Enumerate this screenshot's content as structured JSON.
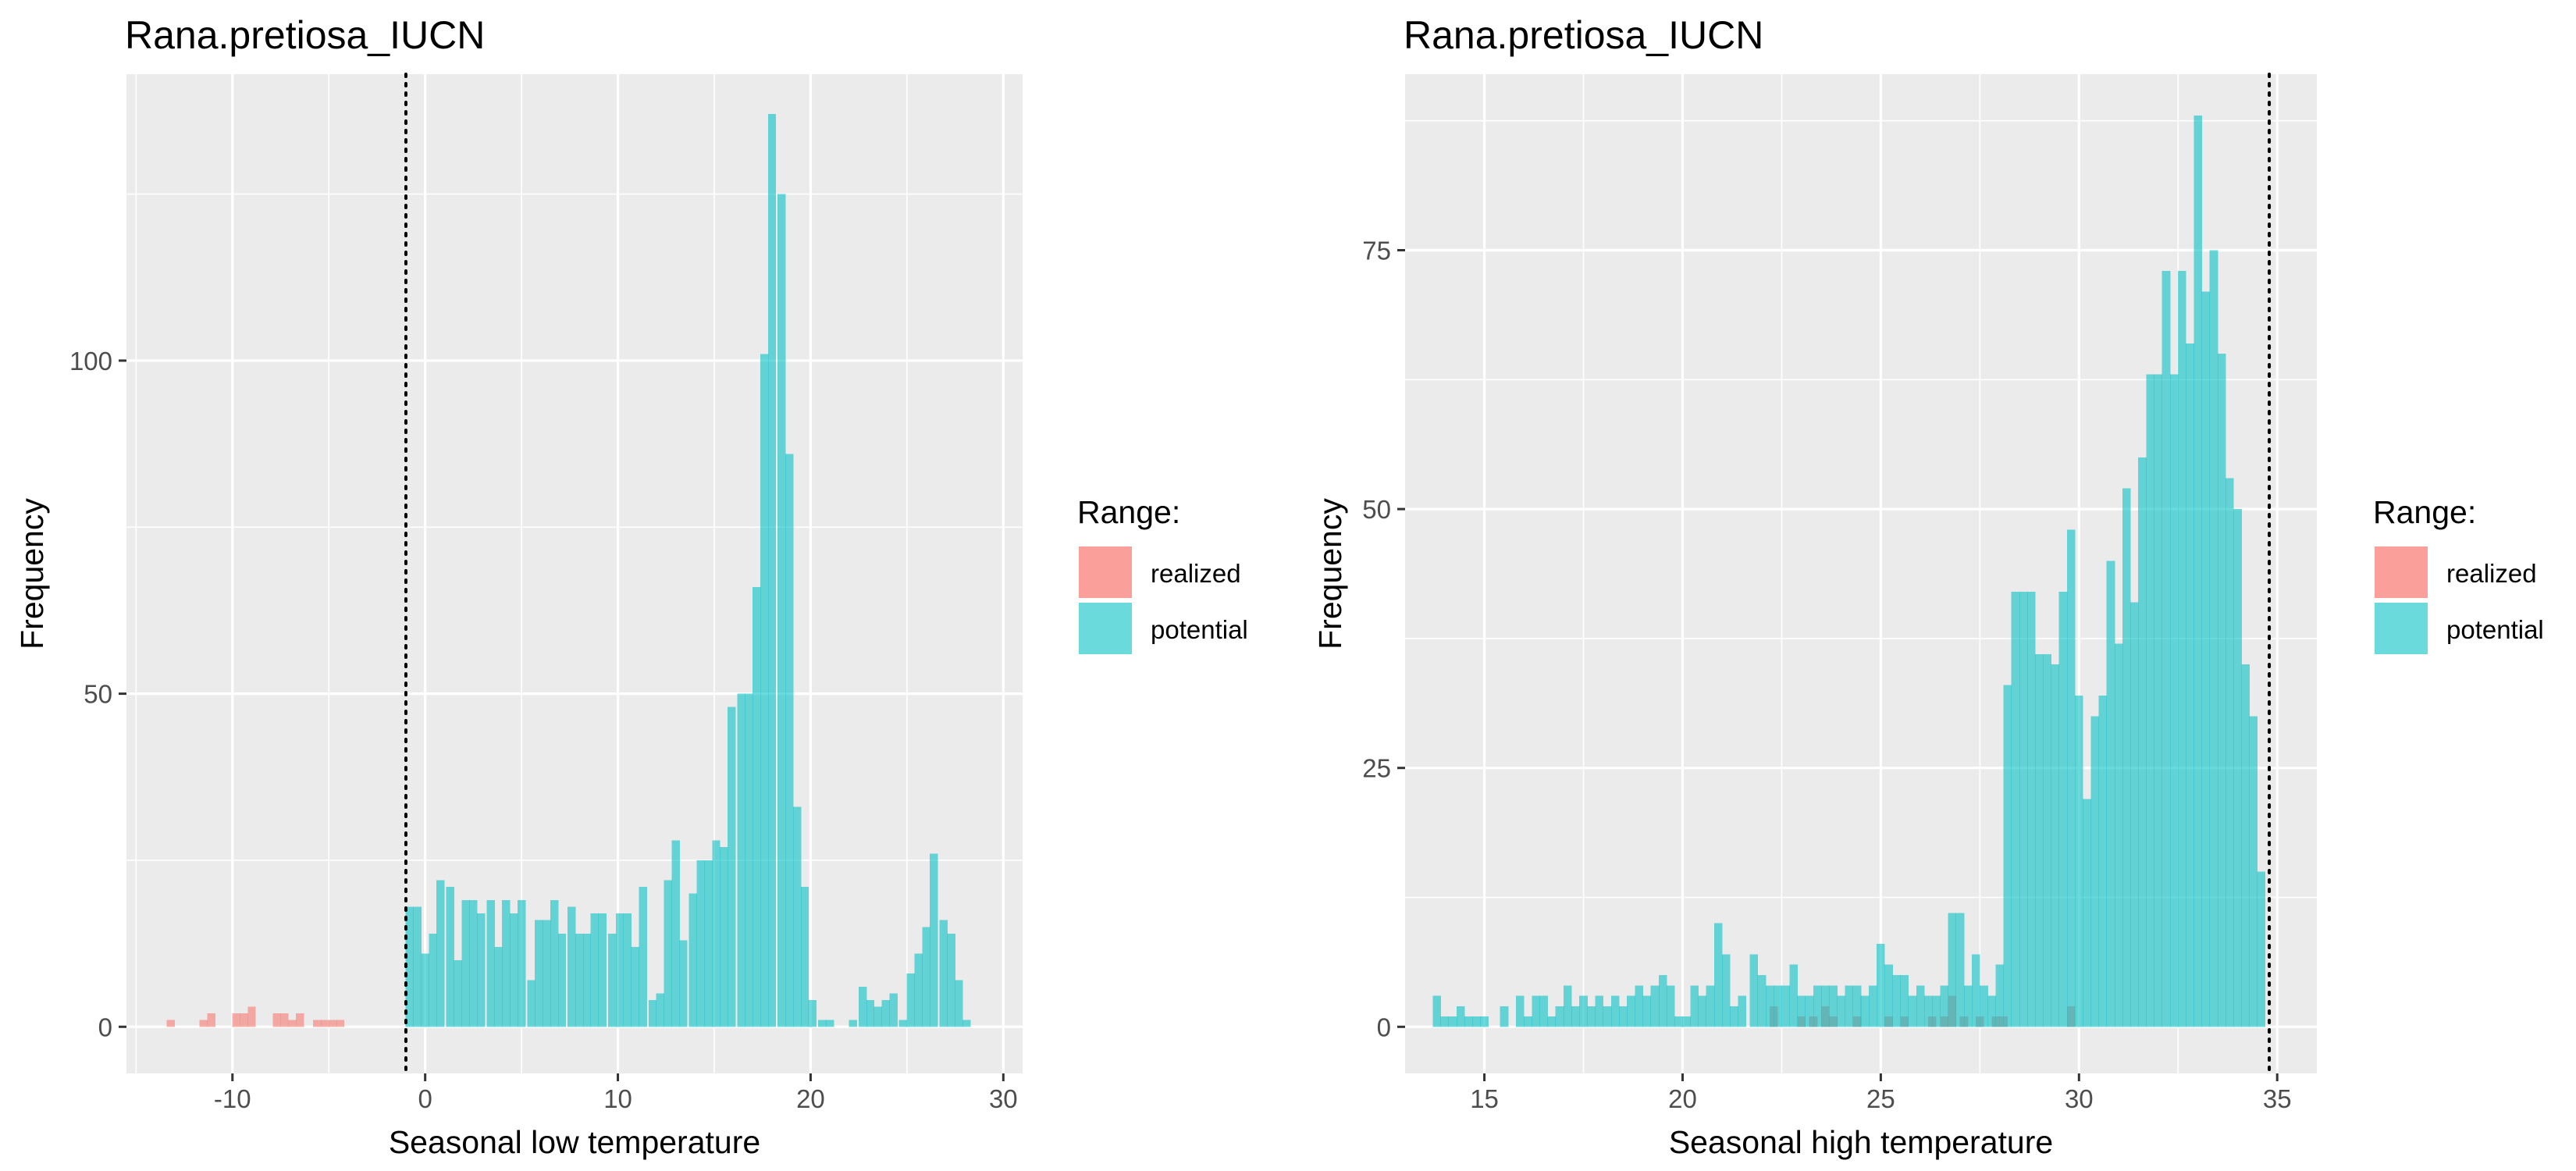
{
  "colors": {
    "realized": "#F8766D",
    "potential": "#00BFC4",
    "panel": "#EBEBEB",
    "grid": "#FFFFFF",
    "overlap": "#6E8A8B"
  },
  "chart_data": [
    {
      "type": "bar",
      "title": "Rana.pretiosa_IUCN",
      "xlabel": "Seasonal low temperature",
      "ylabel": "Frequency",
      "xlim": [
        -15.5,
        31.0
      ],
      "ylim": [
        -7,
        143
      ],
      "xticks": [
        -10,
        0,
        10,
        20,
        30
      ],
      "yticks": [
        0,
        50,
        100
      ],
      "x_tick_labels": [
        "-10",
        "0",
        "10",
        "20",
        "30"
      ],
      "y_tick_labels": [
        "0",
        "50",
        "100"
      ],
      "grid": true,
      "vline": -1.0,
      "bin_width": 0.42,
      "legend": {
        "title": "Range:",
        "position": "right",
        "entries": [
          "realized",
          "potential"
        ]
      },
      "series": [
        {
          "name": "realized",
          "bins": [
            [
              -13.2,
              1
            ],
            [
              -11.5,
              1
            ],
            [
              -11.1,
              2
            ],
            [
              -9.8,
              2
            ],
            [
              -9.4,
              2
            ],
            [
              -9.0,
              3
            ],
            [
              -7.7,
              2
            ],
            [
              -7.3,
              2
            ],
            [
              -6.9,
              1
            ],
            [
              -6.5,
              2
            ],
            [
              -5.6,
              1
            ],
            [
              -5.2,
              1
            ],
            [
              -4.8,
              1
            ],
            [
              -4.4,
              1
            ]
          ]
        },
        {
          "name": "potential",
          "bins": [
            [
              -0.8,
              18
            ],
            [
              -0.4,
              18
            ],
            [
              0.0,
              11
            ],
            [
              0.4,
              14
            ],
            [
              0.8,
              22
            ],
            [
              1.3,
              21
            ],
            [
              1.7,
              10
            ],
            [
              2.1,
              19
            ],
            [
              2.5,
              19
            ],
            [
              2.9,
              17
            ],
            [
              3.4,
              19
            ],
            [
              3.8,
              12
            ],
            [
              4.2,
              19
            ],
            [
              4.6,
              17
            ],
            [
              5.0,
              19
            ],
            [
              5.5,
              7
            ],
            [
              5.9,
              16
            ],
            [
              6.3,
              16
            ],
            [
              6.7,
              19
            ],
            [
              7.1,
              14
            ],
            [
              7.6,
              18
            ],
            [
              8.0,
              14
            ],
            [
              8.4,
              14
            ],
            [
              8.8,
              17
            ],
            [
              9.2,
              17
            ],
            [
              9.7,
              14
            ],
            [
              10.1,
              17
            ],
            [
              10.5,
              17
            ],
            [
              10.9,
              12
            ],
            [
              11.3,
              21
            ],
            [
              11.8,
              4
            ],
            [
              12.2,
              5
            ],
            [
              12.6,
              22
            ],
            [
              13.0,
              28
            ],
            [
              13.4,
              13
            ],
            [
              13.9,
              20
            ],
            [
              14.3,
              25
            ],
            [
              14.7,
              25
            ],
            [
              15.1,
              28
            ],
            [
              15.5,
              27
            ],
            [
              15.9,
              48
            ],
            [
              16.4,
              50
            ],
            [
              16.8,
              50
            ],
            [
              17.2,
              66
            ],
            [
              17.6,
              101
            ],
            [
              18.0,
              137
            ],
            [
              18.5,
              125
            ],
            [
              18.9,
              86
            ],
            [
              19.3,
              33
            ],
            [
              19.7,
              21
            ],
            [
              20.1,
              4
            ],
            [
              20.6,
              1
            ],
            [
              21.0,
              1
            ],
            [
              22.2,
              1
            ],
            [
              22.7,
              6
            ],
            [
              23.1,
              4
            ],
            [
              23.5,
              3
            ],
            [
              23.9,
              4
            ],
            [
              24.3,
              5
            ],
            [
              24.8,
              1
            ],
            [
              25.2,
              8
            ],
            [
              25.6,
              11
            ],
            [
              26.0,
              15
            ],
            [
              26.4,
              26
            ],
            [
              26.9,
              16
            ],
            [
              27.3,
              14
            ],
            [
              27.7,
              7
            ],
            [
              28.1,
              1
            ]
          ]
        }
      ]
    },
    {
      "type": "bar",
      "title": "Rana.pretiosa_IUCN",
      "xlabel": "Seasonal high temperature",
      "ylabel": "Frequency",
      "xlim": [
        13.0,
        36.0
      ],
      "ylim": [
        -4.5,
        92
      ],
      "xticks": [
        15,
        20,
        25,
        30,
        35
      ],
      "yticks": [
        0,
        25,
        50,
        75
      ],
      "x_tick_labels": [
        "15",
        "20",
        "25",
        "30",
        "35"
      ],
      "y_tick_labels": [
        "0",
        "25",
        "50",
        "75"
      ],
      "grid": true,
      "vline": 34.8,
      "bin_width": 0.21,
      "legend": {
        "title": "Range:",
        "position": "right",
        "entries": [
          "realized",
          "potential"
        ]
      },
      "series": [
        {
          "name": "realized",
          "bins": [
            [
              22.3,
              2
            ],
            [
              23.0,
              1
            ],
            [
              23.3,
              1
            ],
            [
              23.6,
              2
            ],
            [
              23.8,
              1
            ],
            [
              24.4,
              1
            ],
            [
              25.2,
              1
            ],
            [
              25.6,
              1
            ],
            [
              26.3,
              1
            ],
            [
              26.6,
              1
            ],
            [
              26.8,
              3
            ],
            [
              27.1,
              1
            ],
            [
              27.5,
              1
            ],
            [
              27.9,
              1
            ],
            [
              28.1,
              1
            ],
            [
              29.8,
              2
            ]
          ]
        },
        {
          "name": "potential",
          "bins": [
            [
              13.8,
              3
            ],
            [
              14.0,
              1
            ],
            [
              14.2,
              1
            ],
            [
              14.4,
              2
            ],
            [
              14.6,
              1
            ],
            [
              14.8,
              1
            ],
            [
              15.0,
              1
            ],
            [
              15.5,
              2
            ],
            [
              15.9,
              3
            ],
            [
              16.1,
              1
            ],
            [
              16.3,
              3
            ],
            [
              16.5,
              3
            ],
            [
              16.7,
              1
            ],
            [
              16.9,
              2
            ],
            [
              17.1,
              4
            ],
            [
              17.3,
              2
            ],
            [
              17.5,
              3
            ],
            [
              17.7,
              2
            ],
            [
              17.9,
              3
            ],
            [
              18.1,
              2
            ],
            [
              18.3,
              3
            ],
            [
              18.5,
              2
            ],
            [
              18.7,
              3
            ],
            [
              18.9,
              4
            ],
            [
              19.1,
              3
            ],
            [
              19.3,
              4
            ],
            [
              19.5,
              5
            ],
            [
              19.7,
              4
            ],
            [
              19.9,
              1
            ],
            [
              20.1,
              1
            ],
            [
              20.3,
              4
            ],
            [
              20.5,
              3
            ],
            [
              20.7,
              4
            ],
            [
              20.9,
              10
            ],
            [
              21.1,
              7
            ],
            [
              21.3,
              2
            ],
            [
              21.5,
              3
            ],
            [
              21.8,
              7
            ],
            [
              22.0,
              5
            ],
            [
              22.2,
              4
            ],
            [
              22.4,
              4
            ],
            [
              22.6,
              4
            ],
            [
              22.8,
              6
            ],
            [
              23.0,
              3
            ],
            [
              23.2,
              3
            ],
            [
              23.4,
              4
            ],
            [
              23.6,
              4
            ],
            [
              23.8,
              4
            ],
            [
              24.0,
              3
            ],
            [
              24.2,
              4
            ],
            [
              24.4,
              4
            ],
            [
              24.6,
              3
            ],
            [
              24.8,
              4
            ],
            [
              25.0,
              8
            ],
            [
              25.2,
              6
            ],
            [
              25.4,
              5
            ],
            [
              25.6,
              5
            ],
            [
              25.8,
              3
            ],
            [
              26.0,
              4
            ],
            [
              26.2,
              3
            ],
            [
              26.4,
              3
            ],
            [
              26.6,
              4
            ],
            [
              26.8,
              11
            ],
            [
              27.0,
              11
            ],
            [
              27.2,
              4
            ],
            [
              27.4,
              7
            ],
            [
              27.6,
              4
            ],
            [
              27.8,
              3
            ],
            [
              28.0,
              6
            ],
            [
              28.2,
              33
            ],
            [
              28.4,
              42
            ],
            [
              28.6,
              42
            ],
            [
              28.8,
              42
            ],
            [
              29.0,
              36
            ],
            [
              29.2,
              36
            ],
            [
              29.4,
              35
            ],
            [
              29.6,
              42
            ],
            [
              29.8,
              48
            ],
            [
              30.0,
              32
            ],
            [
              30.2,
              22
            ],
            [
              30.4,
              30
            ],
            [
              30.6,
              32
            ],
            [
              30.8,
              45
            ],
            [
              31.0,
              37
            ],
            [
              31.2,
              52
            ],
            [
              31.4,
              41
            ],
            [
              31.6,
              55
            ],
            [
              31.8,
              63
            ],
            [
              32.0,
              63
            ],
            [
              32.2,
              73
            ],
            [
              32.4,
              63
            ],
            [
              32.6,
              73
            ],
            [
              32.8,
              66
            ],
            [
              33.0,
              88
            ],
            [
              33.2,
              71
            ],
            [
              33.4,
              75
            ],
            [
              33.6,
              65
            ],
            [
              33.8,
              53
            ],
            [
              34.0,
              50
            ],
            [
              34.2,
              35
            ],
            [
              34.4,
              30
            ],
            [
              34.6,
              15
            ]
          ]
        }
      ]
    }
  ]
}
